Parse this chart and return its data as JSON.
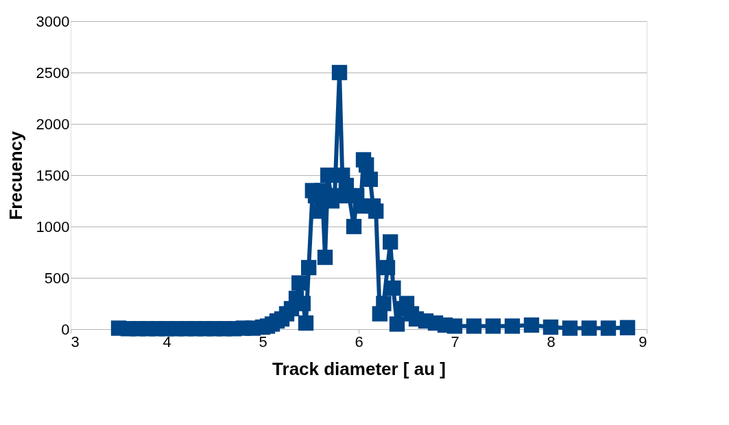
{
  "chart_data": {
    "type": "line",
    "xlabel": "Track diameter  [ au ]",
    "ylabel": "Frecuency",
    "x": [
      3.5,
      3.6,
      3.7,
      3.8,
      3.9,
      4.0,
      4.1,
      4.2,
      4.3,
      4.4,
      4.5,
      4.6,
      4.7,
      4.8,
      4.9,
      5.0,
      5.05,
      5.1,
      5.15,
      5.2,
      5.25,
      5.3,
      5.35,
      5.38,
      5.42,
      5.45,
      5.48,
      5.52,
      5.55,
      5.58,
      5.62,
      5.65,
      5.68,
      5.72,
      5.75,
      5.8,
      5.83,
      5.87,
      5.9,
      5.95,
      5.98,
      6.02,
      6.05,
      6.08,
      6.12,
      6.15,
      6.18,
      6.22,
      6.26,
      6.3,
      6.33,
      6.36,
      6.4,
      6.45,
      6.5,
      6.55,
      6.6,
      6.7,
      6.8,
      6.9,
      7.0,
      7.2,
      7.4,
      7.6,
      7.8,
      8.0,
      8.2,
      8.4,
      8.6,
      8.8
    ],
    "series": [
      {
        "color": "#004586",
        "values": [
          10,
          5,
          5,
          5,
          5,
          5,
          5,
          5,
          5,
          5,
          5,
          5,
          5,
          10,
          10,
          20,
          30,
          50,
          80,
          100,
          150,
          200,
          300,
          450,
          250,
          60,
          600,
          1350,
          1300,
          1150,
          1350,
          700,
          1500,
          1250,
          1300,
          2500,
          1500,
          1400,
          1300,
          1000,
          1300,
          1200,
          1650,
          1600,
          1460,
          1200,
          1150,
          150,
          250,
          600,
          850,
          400,
          50,
          200,
          250,
          150,
          100,
          80,
          60,
          40,
          30,
          30,
          30,
          30,
          40,
          20,
          10,
          10,
          10,
          15
        ]
      }
    ],
    "xlim": [
      3,
      9
    ],
    "xticks": [
      3,
      4,
      5,
      6,
      7,
      8,
      9
    ],
    "ylim": [
      0,
      3000
    ],
    "yticks": [
      0,
      500,
      1000,
      1500,
      2000,
      2500,
      3000
    ],
    "grid": "y",
    "marker": "square",
    "line_style": "solid"
  }
}
